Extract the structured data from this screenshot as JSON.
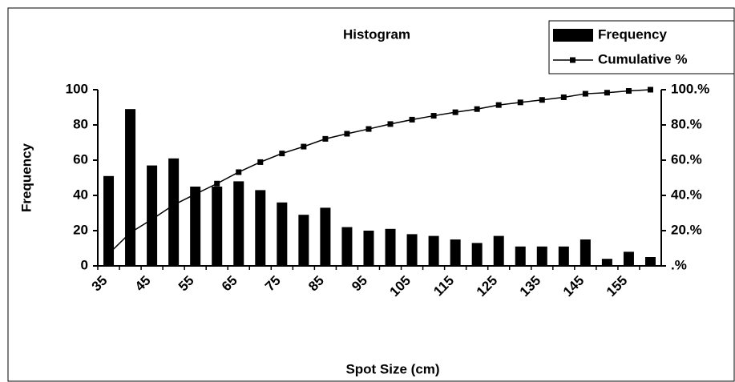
{
  "chart_data": {
    "type": "bar",
    "title": "Histogram",
    "xlabel": "Spot Size (cm)",
    "ylabel": "Frequency",
    "categories": [
      "35",
      null,
      "45",
      null,
      "55",
      null,
      "65",
      null,
      "75",
      null,
      "85",
      null,
      "95",
      null,
      "105",
      null,
      "115",
      null,
      "125",
      null,
      "135",
      null,
      "145",
      null,
      "155",
      null
    ],
    "series": [
      {
        "name": "Frequency",
        "type": "bar",
        "color": "#000000",
        "values": [
          51,
          89,
          57,
          61,
          45,
          45,
          48,
          43,
          36,
          29,
          33,
          22,
          20,
          21,
          18,
          17,
          15,
          13,
          17,
          11,
          11,
          11,
          15,
          4,
          8,
          5
        ]
      },
      {
        "name": "Cumulative %",
        "type": "line",
        "axis": "y2",
        "color": "#000000",
        "values": [
          6.8,
          18.8,
          26.4,
          34.6,
          40.7,
          46.7,
          53.2,
          58.9,
          63.8,
          67.7,
          72.1,
          75.0,
          77.7,
          80.5,
          83.0,
          85.2,
          87.2,
          89.0,
          91.3,
          92.8,
          94.2,
          95.7,
          97.7,
          98.3,
          99.3,
          100
        ]
      }
    ],
    "ylim": [
      0,
      100
    ],
    "yticks": [
      0,
      20,
      40,
      60,
      80,
      100
    ],
    "y2lim": [
      0,
      100
    ],
    "y2ticks": [
      {
        "value": 0,
        "label": ".%"
      },
      {
        "value": 20,
        "label": "20.%"
      },
      {
        "value": 40,
        "label": "40.%"
      },
      {
        "value": 60,
        "label": "60.%"
      },
      {
        "value": 80,
        "label": "80.%"
      },
      {
        "value": 100,
        "label": "100.%"
      }
    ],
    "legend": "top-right"
  }
}
